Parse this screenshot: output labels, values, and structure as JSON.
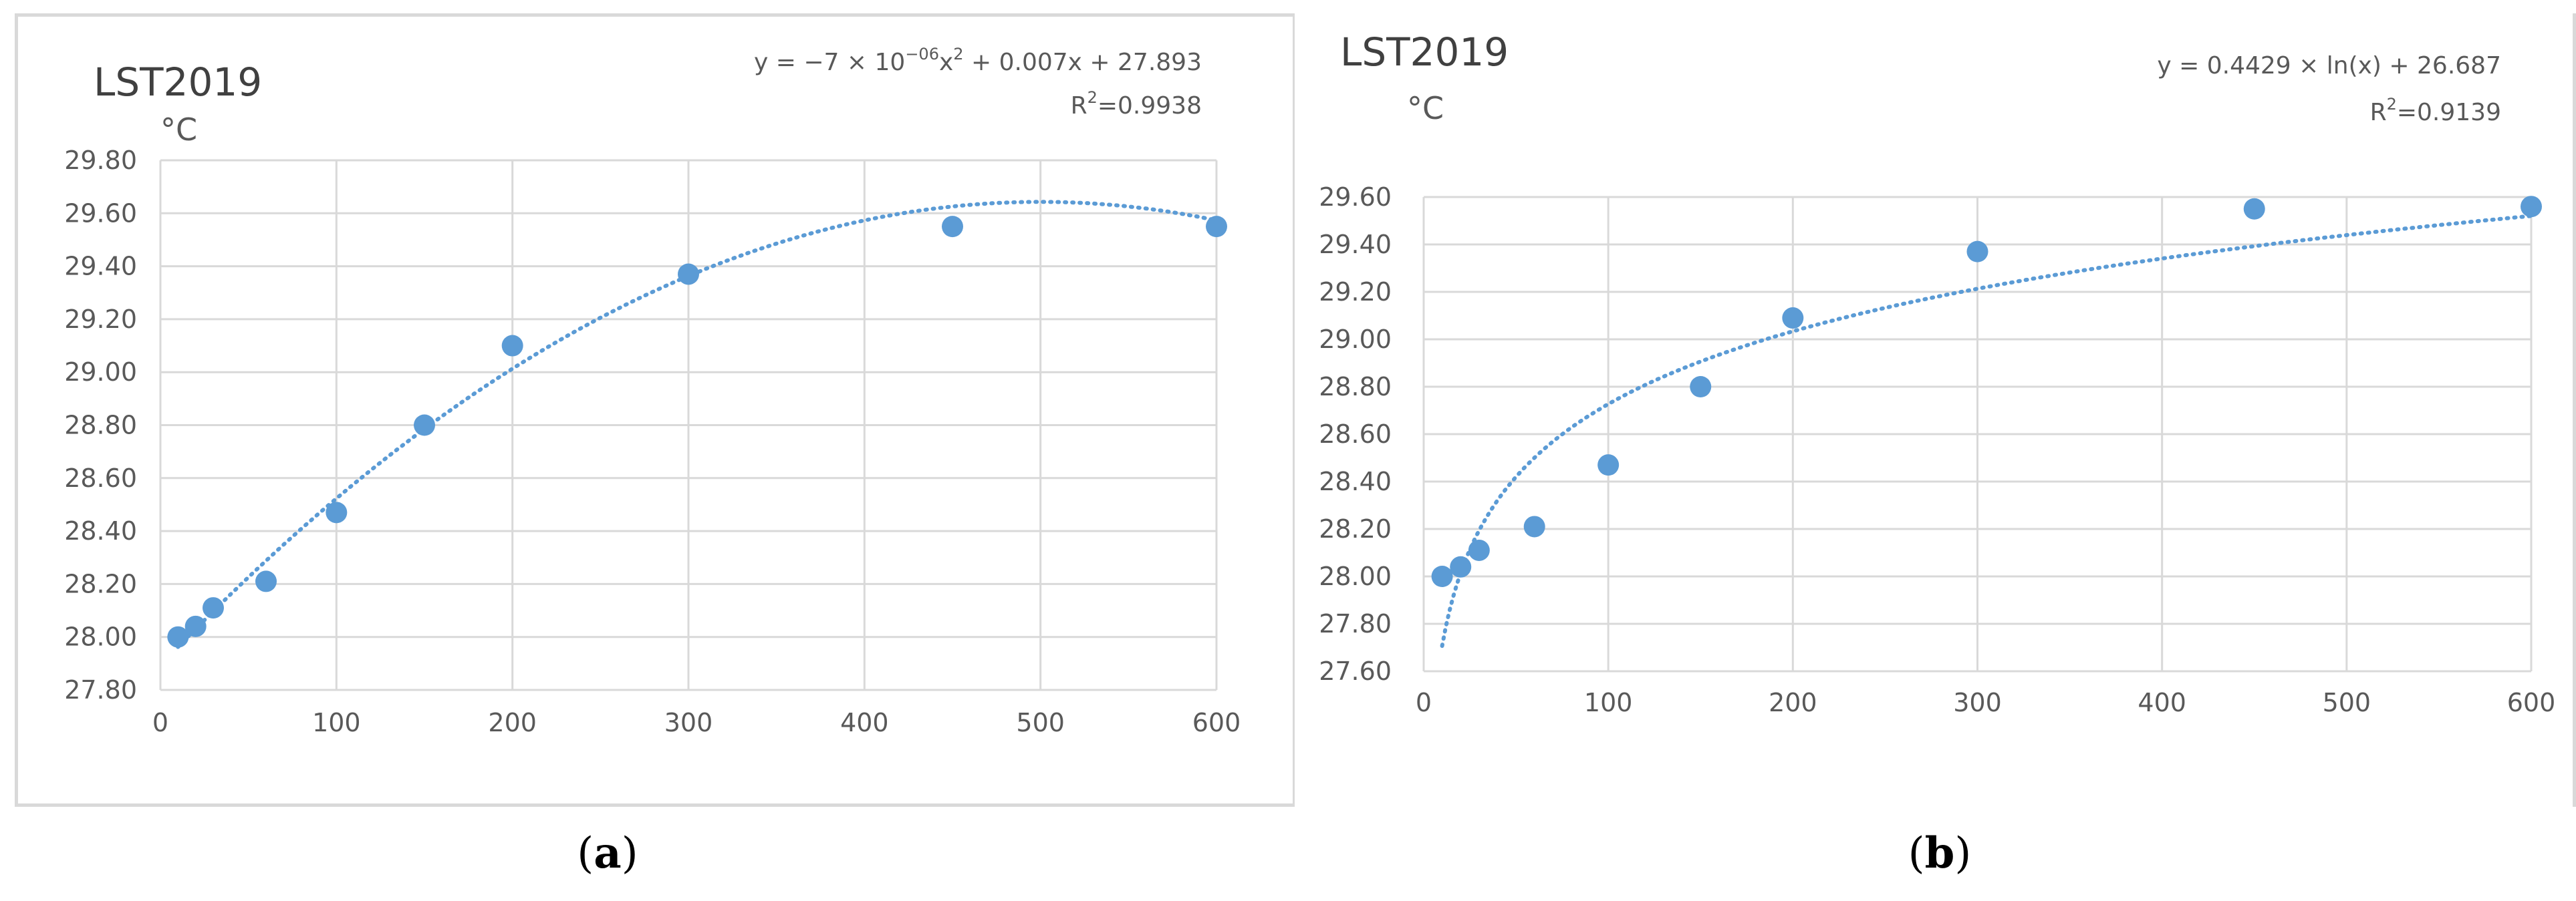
{
  "chart_data": [
    {
      "type": "scatter",
      "panel_label": "a",
      "title": "LST2019",
      "ylabel": "°C",
      "xlabel": "",
      "x_ticks": [
        "0",
        "100",
        "200",
        "300",
        "400",
        "500",
        "600"
      ],
      "y_ticks": [
        "27.80",
        "28.00",
        "28.20",
        "28.40",
        "28.60",
        "28.80",
        "29.00",
        "29.20",
        "29.40",
        "29.60",
        "29.80"
      ],
      "xlim": [
        0,
        600
      ],
      "ylim": [
        27.8,
        29.8
      ],
      "grid": "vertical and horizontal",
      "series": [
        {
          "x": [
            10,
            20,
            30,
            60,
            100,
            150,
            200,
            300,
            450,
            600
          ],
          "y": [
            28.0,
            28.04,
            28.11,
            28.21,
            28.47,
            28.8,
            29.1,
            29.37,
            29.55,
            29.55
          ]
        }
      ],
      "trendline": {
        "type": "polynomial",
        "equation_text": "y = −7 × 10",
        "equation_exponent": "−06",
        "equation_text_2": "x",
        "equation_exponent_2": "2",
        "equation_text_3": " + 0.007x + 27.893",
        "r2_label": "R",
        "r2_exp": "2",
        "r2_value": "=0.9938",
        "coefficients": {
          "a": -7e-06,
          "b": 0.007,
          "c": 27.893
        }
      }
    },
    {
      "type": "scatter",
      "panel_label": "b",
      "title": "LST2019",
      "ylabel": "°C",
      "xlabel": "",
      "x_ticks": [
        "0",
        "100",
        "200",
        "300",
        "400",
        "500",
        "600"
      ],
      "y_ticks": [
        "27.60",
        "27.80",
        "28.00",
        "28.20",
        "28.40",
        "28.60",
        "28.80",
        "29.00",
        "29.20",
        "29.40",
        "29.60"
      ],
      "xlim": [
        0,
        600
      ],
      "ylim": [
        27.6,
        29.6
      ],
      "grid": "vertical and horizontal",
      "series": [
        {
          "x": [
            10,
            20,
            30,
            60,
            100,
            150,
            200,
            300,
            450,
            600
          ],
          "y": [
            28.0,
            28.04,
            28.11,
            28.21,
            28.47,
            28.8,
            29.09,
            29.37,
            29.55,
            29.56
          ]
        }
      ],
      "trendline": {
        "type": "logarithmic",
        "equation_text": "y = 0.4429 × ln(x) + 26.687",
        "r2_label": "R",
        "r2_exp": "2",
        "r2_value": "=0.9139",
        "coefficients": {
          "a": 0.4429,
          "b": 26.687
        }
      }
    }
  ],
  "captions": {
    "a": "a",
    "b": "b"
  },
  "colors": {
    "points": "#5b9bd5",
    "grid": "#d9d9d9",
    "text": "#595959"
  }
}
